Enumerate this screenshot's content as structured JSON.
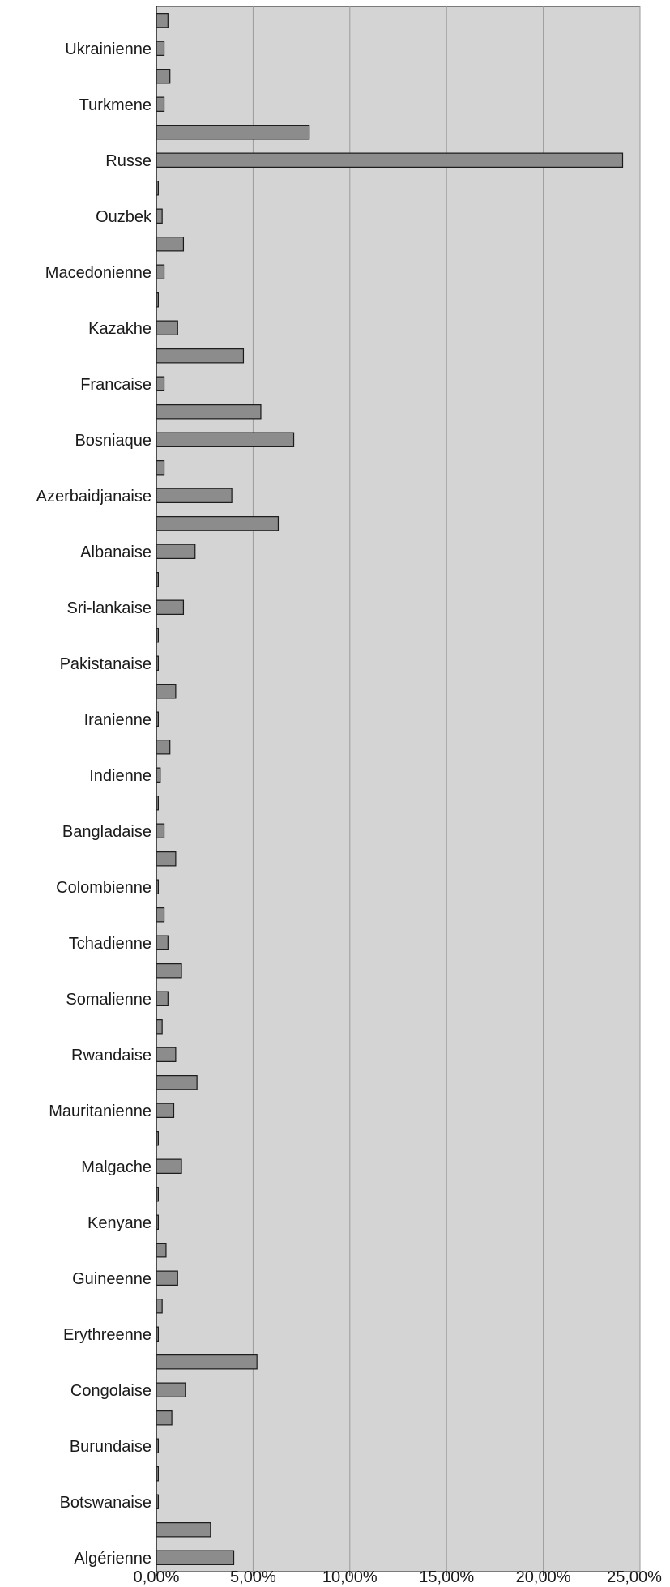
{
  "chart_data": {
    "type": "bar",
    "orientation": "horizontal",
    "title": "",
    "xlabel": "",
    "ylabel": "",
    "xlim": [
      0,
      0.25
    ],
    "x_ticks": [
      "0,00%",
      "5,00%",
      "10,00%",
      "15,00%",
      "20,00%",
      "25,00%"
    ],
    "grid": "vertical",
    "legend": "none",
    "colors": {
      "plot_bg": "#d4d4d4",
      "bar_fill": "#8c8c8c",
      "bar_stroke": "#1a1a1a",
      "grid": "#9a9a9a",
      "axis": "#222222"
    },
    "labeled_categories": [
      "Ukrainienne",
      "Turkmene",
      "Russe",
      "Ouzbek",
      "Macedonienne",
      "Kazakhe",
      "Francaise",
      "Bosniaque",
      "Azerbaidjanaise",
      "Albanaise",
      "Sri-lankaise",
      "Pakistanaise",
      "Iranienne",
      "Indienne",
      "Bangladaise",
      "Colombienne",
      "Tchadienne",
      "Somalienne",
      "Rwandaise",
      "Mauritanienne",
      "Malgache",
      "Kenyane",
      "Guineenne",
      "Erythreenne",
      "Congolaise",
      "Burundaise",
      "Botswanaise",
      "Algérienne"
    ],
    "values": [
      0.006,
      0.004,
      0.007,
      0.004,
      0.079,
      0.241,
      0.001,
      0.003,
      0.014,
      0.004,
      0.001,
      0.011,
      0.045,
      0.004,
      0.054,
      0.071,
      0.004,
      0.039,
      0.063,
      0.02,
      0.001,
      0.014,
      0.001,
      0.001,
      0.01,
      0.001,
      0.007,
      0.002,
      0.001,
      0.004,
      0.01,
      0.001,
      0.004,
      0.006,
      0.013,
      0.006,
      0.003,
      0.01,
      0.021,
      0.009,
      0.001,
      0.013,
      0.001,
      0.001,
      0.005,
      0.011,
      0.003,
      0.001,
      0.052,
      0.015,
      0.008,
      0.001,
      0.001,
      0.001,
      0.028,
      0.04
    ]
  }
}
